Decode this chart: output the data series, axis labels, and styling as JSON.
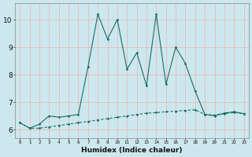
{
  "xlabel": "Humidex (Indice chaleur)",
  "background_color": "#cce8ee",
  "grid_color": "#ff9999",
  "line_color": "#1a6e64",
  "xlim": [
    -0.5,
    23.5
  ],
  "ylim": [
    5.7,
    10.6
  ],
  "yticks": [
    6,
    7,
    8,
    9,
    10
  ],
  "xticks": [
    0,
    1,
    2,
    3,
    4,
    5,
    6,
    7,
    8,
    9,
    10,
    11,
    12,
    13,
    14,
    15,
    16,
    17,
    18,
    19,
    20,
    21,
    22,
    23
  ],
  "xtick_labels": [
    "0",
    "1",
    "2",
    "3",
    "4",
    "5",
    "6",
    "7",
    "8",
    "9",
    "10",
    "11",
    "12",
    "13",
    "14",
    "15",
    "16",
    "17",
    "18",
    "19",
    "20",
    "21",
    "22",
    "23"
  ],
  "series1_x": [
    0,
    1,
    2,
    3,
    4,
    5,
    6,
    7,
    8,
    9,
    10,
    11,
    12,
    13,
    14,
    15,
    16,
    17,
    18,
    19,
    20,
    21,
    22,
    23
  ],
  "series1_y": [
    6.25,
    6.05,
    6.05,
    6.1,
    6.15,
    6.2,
    6.25,
    6.3,
    6.35,
    6.4,
    6.45,
    6.5,
    6.55,
    6.6,
    6.62,
    6.65,
    6.67,
    6.7,
    6.72,
    6.55,
    6.53,
    6.58,
    6.62,
    6.58
  ],
  "series2_x": [
    0,
    1,
    2,
    3,
    4,
    5,
    6,
    7,
    8,
    9,
    10,
    11,
    12,
    13,
    14,
    15,
    16,
    17,
    18,
    19,
    20,
    21,
    22,
    23
  ],
  "series2_y": [
    6.25,
    6.05,
    6.2,
    6.5,
    6.45,
    6.5,
    6.55,
    8.3,
    10.2,
    9.3,
    10.0,
    8.2,
    8.8,
    7.6,
    10.2,
    7.65,
    9.0,
    8.4,
    7.4,
    6.55,
    6.5,
    6.6,
    6.65,
    6.58
  ]
}
